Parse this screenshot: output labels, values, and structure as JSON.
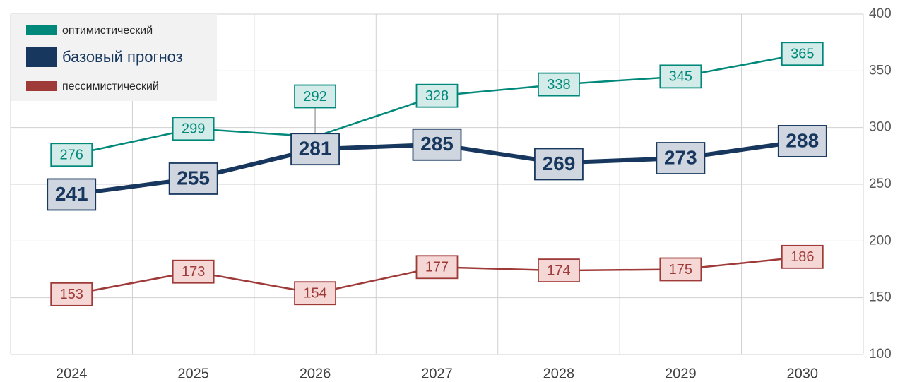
{
  "chart_data": {
    "type": "line",
    "categories": [
      "2024",
      "2025",
      "2026",
      "2027",
      "2028",
      "2029",
      "2030"
    ],
    "series": [
      {
        "name": "оптимистический",
        "color": "#00897b",
        "values": [
          276,
          299,
          292,
          328,
          338,
          345,
          365
        ]
      },
      {
        "name": "базовый прогноз",
        "color": "#17375e",
        "values": [
          241,
          255,
          281,
          285,
          269,
          273,
          288
        ]
      },
      {
        "name": "пессимистический",
        "color": "#9e3a38",
        "values": [
          153,
          173,
          154,
          177,
          174,
          175,
          186
        ]
      }
    ],
    "ylim": [
      100,
      400
    ],
    "yticks": [
      100,
      150,
      200,
      250,
      300,
      350,
      400
    ],
    "grid": true,
    "legend": "upper left",
    "yaxis_side": "right"
  }
}
